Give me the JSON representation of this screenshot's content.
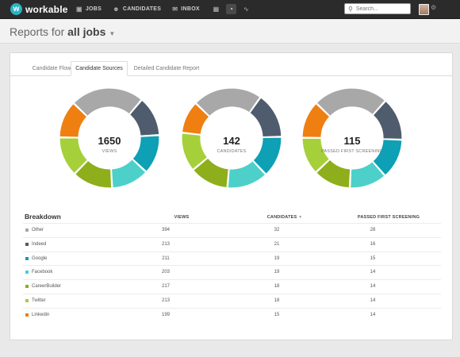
{
  "app": {
    "logo_letter": "w",
    "logo_text": "workable"
  },
  "nav": [
    {
      "label": "JOBS",
      "icon": "briefcase-icon"
    },
    {
      "label": "CANDIDATES",
      "icon": "people-icon"
    },
    {
      "label": "INBOX",
      "icon": "inbox-icon"
    }
  ],
  "search": {
    "placeholder": "Search..."
  },
  "page": {
    "title_prefix": "Reports for ",
    "title_bold": "all jobs"
  },
  "tabs": [
    {
      "label": "Candidate Flow",
      "active": false
    },
    {
      "label": "Candidate Sources",
      "active": true
    },
    {
      "label": "Detailed Candidate Report",
      "active": false
    }
  ],
  "sources": [
    {
      "name": "Other",
      "color": "#a8a8a8"
    },
    {
      "name": "Indeed",
      "color": "#4f5c6e"
    },
    {
      "name": "Google",
      "color": "#0ea0b4"
    },
    {
      "name": "Facebook",
      "color": "#4dd0c9"
    },
    {
      "name": "CareerBuilder",
      "color": "#8fae1b"
    },
    {
      "name": "Twitter",
      "color": "#a6d039"
    },
    {
      "name": "Linkedin",
      "color": "#f07f12"
    }
  ],
  "donuts": [
    {
      "total": "1650",
      "label": "VIEWS",
      "values": [
        394,
        213,
        211,
        203,
        217,
        213,
        199
      ]
    },
    {
      "total": "142",
      "label": "CANDIDATES",
      "values": [
        32,
        21,
        19,
        19,
        18,
        18,
        15
      ]
    },
    {
      "total": "115",
      "label": "PASSED FIRST SCREENING",
      "values": [
        28,
        16,
        15,
        14,
        14,
        14,
        14
      ]
    }
  ],
  "table": {
    "title": "Breakdown",
    "headers": [
      "VIEWS",
      "CANDIDATES",
      "PASSED FIRST SCREENING"
    ],
    "rows": [
      [
        "Other",
        "394",
        "32",
        "28"
      ],
      [
        "Indeed",
        "213",
        "21",
        "16"
      ],
      [
        "Google",
        "211",
        "19",
        "15"
      ],
      [
        "Facebook",
        "203",
        "19",
        "14"
      ],
      [
        "CareerBuilder",
        "217",
        "18",
        "14"
      ],
      [
        "Twitter",
        "213",
        "18",
        "14"
      ],
      [
        "Linkedin",
        "199",
        "15",
        "14"
      ]
    ]
  }
}
